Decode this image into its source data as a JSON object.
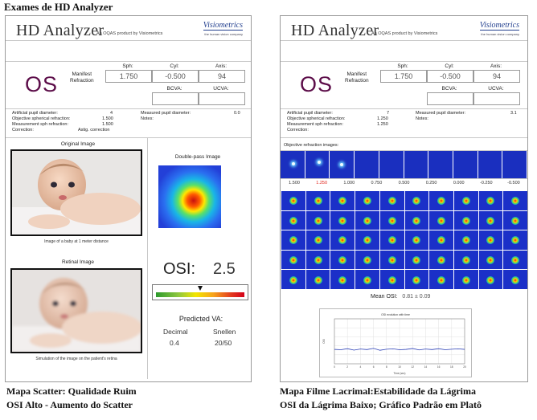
{
  "page": {
    "title": "Exames de HD Analyzer"
  },
  "header": {
    "logo": "HD Analyzer",
    "tagline": "An OQAS product by Visiometrics",
    "brand": "Visiometrics",
    "brand_sub": "the human vision company"
  },
  "left": {
    "eye": "OS",
    "manifest_label": "Manifest\nRefraction",
    "sph_label": "Sph:",
    "cyl_label": "Cyl:",
    "axis_label": "Axis:",
    "sph": "1.750",
    "cyl": "-0.500",
    "axis": "94",
    "bcva_label": "BCVA:",
    "ucva_label": "UCVA:",
    "bcva": "",
    "ucva": "",
    "params": {
      "artificial_pupil_label": "Artificial pupil diameter:",
      "artificial_pupil": "4",
      "obj_sph_label": "Objective spherical refraction:",
      "obj_sph": "1.500",
      "meas_sph_label": "Measurement sph refraction:",
      "meas_sph": "1.500",
      "correction_label": "Correction:",
      "correction": "Astig. correction",
      "measured_pupil_label": "Measured pupil diameter:",
      "measured_pupil": "0.0",
      "notes_label": "Notes:"
    },
    "original_image_title": "Original Image",
    "original_caption": "Image of a baby at 1 meter distance",
    "retinal_image_title": "Retinal Image",
    "retinal_caption": "Simulation of the image on the patient's retina",
    "double_pass_title": "Double-pass Image",
    "osi_label": "OSI:",
    "osi_value": "2.5",
    "predicted_va_title": "Predicted VA:",
    "decimal_label": "Decimal",
    "snellen_label": "Snellen",
    "decimal_value": "0.4",
    "snellen_value": "20/50"
  },
  "right": {
    "eye": "OS",
    "manifest_label": "Manifest\nRefraction",
    "sph_label": "Sph:",
    "cyl_label": "Cyl:",
    "axis_label": "Axis:",
    "sph": "1.750",
    "cyl": "-0.500",
    "axis": "94",
    "bcva_label": "BCVA:",
    "ucva_label": "UCVA:",
    "bcva": "",
    "ucva": "",
    "params": {
      "artificial_pupil_label": "Artificial pupil diameter:",
      "artificial_pupil": "7",
      "obj_sph_label": "Objective spherical refraction:",
      "obj_sph": "1.250",
      "meas_sph_label": "Measurement sph refraction:",
      "meas_sph": "1.250",
      "correction_label": "Correction:",
      "correction": "",
      "measured_pupil_label": "Measured pupil diameter:",
      "measured_pupil": "3.1",
      "notes_label": "Notes:"
    },
    "objective_images_label": "Objective refraction images:",
    "refraction_steps": [
      "1.500",
      "1.250",
      "1.000",
      "0.750",
      "0.500",
      "0.250",
      "0.000",
      "-0.250",
      "-0.500"
    ],
    "highlight_step": "1.250",
    "mean_osi_label": "Mean OSI:",
    "mean_osi_value": "0.81 ± 0.09",
    "osi_plot_title": "OSI evolution with time",
    "osi_plot_xlabel": "Time (sec)",
    "osi_plot_ylabel": "OSI"
  },
  "captions": {
    "left_line1": "Mapa Scatter: Qualidade Ruim",
    "left_line2": "OSI Alto - Aumento do Scatter",
    "right_line1": "Mapa Filme Lacrimal:Estabilidade da Lágrima",
    "right_line2": "OSI da Lágrima Baixo; Gráfico Padrão em Platô"
  },
  "colors": {
    "eye": "#5c0d49",
    "brand": "#223f8e",
    "highlight": "#e0241c",
    "map_blue": "#1b30c8"
  },
  "osi_scale": {
    "value": 2.5,
    "min": 0,
    "max": 5
  },
  "chart_data": {
    "type": "line",
    "title": "OSI evolution with time",
    "xlabel": "Time (sec)",
    "ylabel": "OSI",
    "x": [
      0,
      1,
      2,
      3,
      4,
      5,
      6,
      7,
      8,
      9,
      10,
      11,
      12,
      13,
      14,
      15,
      16,
      17,
      18,
      19,
      20
    ],
    "series": [
      {
        "values": [
          0.8,
          0.78,
          0.84,
          0.76,
          0.82,
          0.79,
          0.86,
          0.75,
          0.81,
          0.83,
          0.78,
          0.8,
          0.85,
          0.77,
          0.82,
          0.79,
          0.84,
          0.78,
          0.81,
          0.83,
          0.8
        ]
      }
    ],
    "xlim": [
      0,
      20
    ],
    "ylim": [
      0,
      2.5
    ],
    "xticks": [
      "0",
      "2",
      "4",
      "6",
      "8",
      "10",
      "12",
      "14",
      "16",
      "18",
      "20"
    ],
    "grid": true
  }
}
